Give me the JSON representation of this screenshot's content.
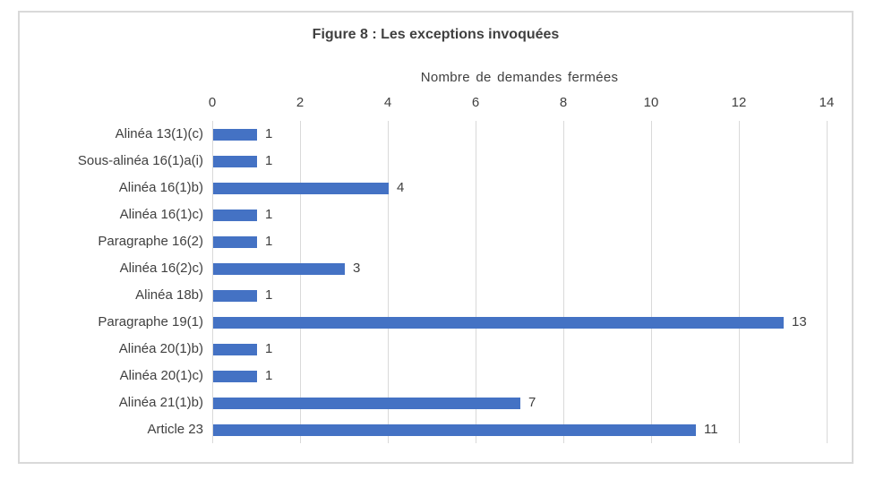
{
  "chart_data": {
    "type": "bar",
    "orientation": "horizontal",
    "title": "Figure 8 : Les exceptions invoquées",
    "xlabel": "Nombre de demandes fermées",
    "categories": [
      "Alinéa 13(1)(c)",
      "Sous-alinéa 16(1)a(i)",
      "Alinéa 16(1)b)",
      "Alinéa 16(1)c)",
      "Paragraphe 16(2)",
      "Alinéa 16(2)c)",
      "Alinéa 18b)",
      "Paragraphe 19(1)",
      "Alinéa 20(1)b)",
      "Alinéa 20(1)c)",
      "Alinéa 21(1)b)",
      "Article 23"
    ],
    "values": [
      1,
      1,
      4,
      1,
      1,
      3,
      1,
      13,
      1,
      1,
      7,
      11
    ],
    "xlim": [
      0,
      14
    ],
    "xticks": [
      0,
      2,
      4,
      6,
      8,
      10,
      12,
      14
    ],
    "grid": true,
    "data_labels": true,
    "legend": "none",
    "bar_color": "#4472C4",
    "gridline_color": "#D9D9D9",
    "border_color": "#D9D9D9",
    "text_color": "#404040"
  }
}
